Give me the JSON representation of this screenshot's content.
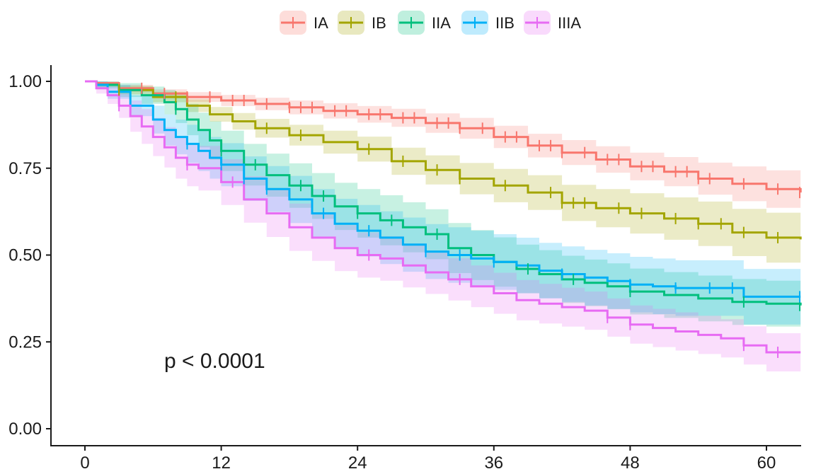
{
  "chart_data": {
    "type": "line",
    "subtype": "kaplan-meier survival curves with confidence bands",
    "title": "",
    "xlabel": "",
    "ylabel": "",
    "xlim": [
      0,
      63
    ],
    "ylim": [
      0,
      1.0
    ],
    "x_ticks": [
      0,
      12,
      24,
      36,
      48,
      60
    ],
    "y_ticks": [
      0.0,
      0.25,
      0.5,
      0.75,
      1.0
    ],
    "y_tick_labels": [
      "0.00",
      "0.25",
      "0.50",
      "0.75",
      "1.00"
    ],
    "legend_position": "top",
    "annotation": "p < 0.0001",
    "series": [
      {
        "name": "IA",
        "color": "#F8766D",
        "x": [
          0,
          1,
          3,
          6,
          9,
          12,
          15,
          18,
          21,
          24,
          27,
          30,
          33,
          36,
          39,
          42,
          45,
          48,
          51,
          54,
          57,
          60,
          63
        ],
        "y": [
          1.0,
          0.995,
          0.98,
          0.965,
          0.955,
          0.945,
          0.935,
          0.925,
          0.915,
          0.905,
          0.895,
          0.88,
          0.865,
          0.84,
          0.815,
          0.795,
          0.775,
          0.755,
          0.74,
          0.72,
          0.705,
          0.69,
          0.68
        ],
        "ci_half_width": [
          0.0,
          0.005,
          0.01,
          0.012,
          0.014,
          0.016,
          0.018,
          0.02,
          0.022,
          0.024,
          0.026,
          0.028,
          0.03,
          0.032,
          0.034,
          0.036,
          0.038,
          0.04,
          0.042,
          0.046,
          0.05,
          0.054,
          0.058
        ],
        "censor_x": [
          3,
          5,
          7,
          9,
          11,
          13,
          14,
          16,
          18,
          19,
          20,
          22,
          23,
          25,
          26,
          28,
          29,
          31,
          32,
          33,
          35,
          37,
          38,
          40,
          41,
          42,
          44,
          46,
          47,
          49,
          50,
          52,
          53,
          54,
          55,
          58,
          61,
          63
        ]
      },
      {
        "name": "IB",
        "color": "#A3A500",
        "x": [
          0,
          1,
          3,
          6,
          9,
          11,
          13,
          15,
          18,
          21,
          24,
          27,
          30,
          33,
          36,
          39,
          42,
          45,
          48,
          51,
          54,
          57,
          60,
          63
        ],
        "y": [
          1.0,
          0.99,
          0.975,
          0.955,
          0.93,
          0.905,
          0.885,
          0.865,
          0.845,
          0.825,
          0.805,
          0.77,
          0.745,
          0.72,
          0.7,
          0.68,
          0.65,
          0.635,
          0.62,
          0.605,
          0.59,
          0.565,
          0.55,
          0.545
        ],
        "ci_half_width": [
          0.0,
          0.006,
          0.012,
          0.015,
          0.018,
          0.021,
          0.024,
          0.027,
          0.03,
          0.033,
          0.036,
          0.039,
          0.042,
          0.045,
          0.048,
          0.05,
          0.052,
          0.055,
          0.058,
          0.061,
          0.064,
          0.068,
          0.072,
          0.076
        ],
        "censor_x": [
          3,
          8,
          16,
          19,
          25,
          28,
          31,
          33,
          37,
          41,
          42,
          43,
          44,
          47,
          49,
          52,
          54,
          56,
          58,
          61
        ]
      },
      {
        "name": "IIA",
        "color": "#00BF7D",
        "x": [
          0,
          1,
          3,
          5,
          7,
          8,
          9,
          10,
          11,
          12,
          14,
          16,
          18,
          20,
          22,
          24,
          26,
          28,
          30,
          32,
          34,
          36,
          38,
          40,
          42,
          44,
          46,
          48,
          51,
          54,
          57,
          60,
          63
        ],
        "y": [
          1.0,
          0.99,
          0.975,
          0.96,
          0.94,
          0.92,
          0.89,
          0.86,
          0.83,
          0.8,
          0.76,
          0.73,
          0.7,
          0.67,
          0.64,
          0.62,
          0.6,
          0.58,
          0.56,
          0.52,
          0.5,
          0.48,
          0.46,
          0.445,
          0.43,
          0.42,
          0.41,
          0.395,
          0.385,
          0.375,
          0.365,
          0.36,
          0.355
        ],
        "ci_half_width": [
          0.0,
          0.01,
          0.02,
          0.025,
          0.035,
          0.04,
          0.045,
          0.05,
          0.055,
          0.058,
          0.06,
          0.062,
          0.064,
          0.066,
          0.068,
          0.07,
          0.072,
          0.072,
          0.072,
          0.072,
          0.072,
          0.071,
          0.07,
          0.069,
          0.068,
          0.067,
          0.066,
          0.066,
          0.066,
          0.066,
          0.066,
          0.066,
          0.066
        ],
        "censor_x": [
          8,
          12,
          15,
          19,
          21,
          24,
          27,
          31,
          39,
          43,
          48,
          58,
          63
        ]
      },
      {
        "name": "IIB",
        "color": "#00B0F6",
        "x": [
          0,
          1,
          2,
          4,
          6,
          7,
          8,
          9,
          10,
          11,
          12,
          14,
          16,
          18,
          20,
          22,
          24,
          26,
          28,
          30,
          32,
          34,
          36,
          38,
          40,
          42,
          44,
          46,
          48,
          50,
          52,
          54,
          56,
          58,
          60,
          63
        ],
        "y": [
          1.0,
          0.99,
          0.97,
          0.93,
          0.89,
          0.86,
          0.84,
          0.82,
          0.8,
          0.78,
          0.76,
          0.72,
          0.69,
          0.66,
          0.62,
          0.59,
          0.57,
          0.55,
          0.53,
          0.51,
          0.5,
          0.49,
          0.48,
          0.47,
          0.455,
          0.445,
          0.435,
          0.425,
          0.415,
          0.41,
          0.405,
          0.405,
          0.405,
          0.38,
          0.38,
          0.38
        ],
        "ci_half_width": [
          0.0,
          0.01,
          0.02,
          0.03,
          0.04,
          0.045,
          0.05,
          0.055,
          0.058,
          0.06,
          0.062,
          0.064,
          0.066,
          0.068,
          0.07,
          0.072,
          0.074,
          0.076,
          0.078,
          0.079,
          0.08,
          0.08,
          0.08,
          0.08,
          0.08,
          0.08,
          0.08,
          0.08,
          0.08,
          0.08,
          0.08,
          0.08,
          0.08,
          0.08,
          0.08,
          0.08
        ],
        "censor_x": [
          9,
          12,
          14,
          16,
          21,
          25,
          30,
          33,
          36,
          42,
          48,
          52,
          55,
          57,
          63
        ]
      },
      {
        "name": "IIIA",
        "color": "#E76BF3",
        "x": [
          0,
          1,
          2,
          3,
          4,
          5,
          6,
          7,
          8,
          9,
          10,
          12,
          14,
          16,
          18,
          20,
          22,
          24,
          26,
          28,
          30,
          32,
          34,
          36,
          38,
          40,
          42,
          44,
          46,
          48,
          50,
          52,
          54,
          56,
          58,
          60,
          63
        ],
        "y": [
          1.0,
          0.98,
          0.96,
          0.93,
          0.9,
          0.87,
          0.84,
          0.81,
          0.78,
          0.76,
          0.75,
          0.71,
          0.66,
          0.62,
          0.58,
          0.55,
          0.52,
          0.5,
          0.49,
          0.47,
          0.45,
          0.43,
          0.41,
          0.39,
          0.37,
          0.36,
          0.35,
          0.34,
          0.32,
          0.3,
          0.29,
          0.28,
          0.27,
          0.26,
          0.24,
          0.22,
          0.22
        ],
        "ci_half_width": [
          0.0,
          0.015,
          0.025,
          0.035,
          0.045,
          0.05,
          0.055,
          0.058,
          0.06,
          0.062,
          0.064,
          0.066,
          0.067,
          0.068,
          0.068,
          0.067,
          0.066,
          0.065,
          0.064,
          0.063,
          0.062,
          0.061,
          0.06,
          0.059,
          0.058,
          0.057,
          0.056,
          0.055,
          0.055,
          0.055,
          0.055,
          0.055,
          0.055,
          0.055,
          0.055,
          0.055,
          0.055
        ],
        "censor_x": [
          3,
          9,
          13,
          25,
          33,
          46,
          48,
          58,
          61
        ]
      }
    ]
  }
}
